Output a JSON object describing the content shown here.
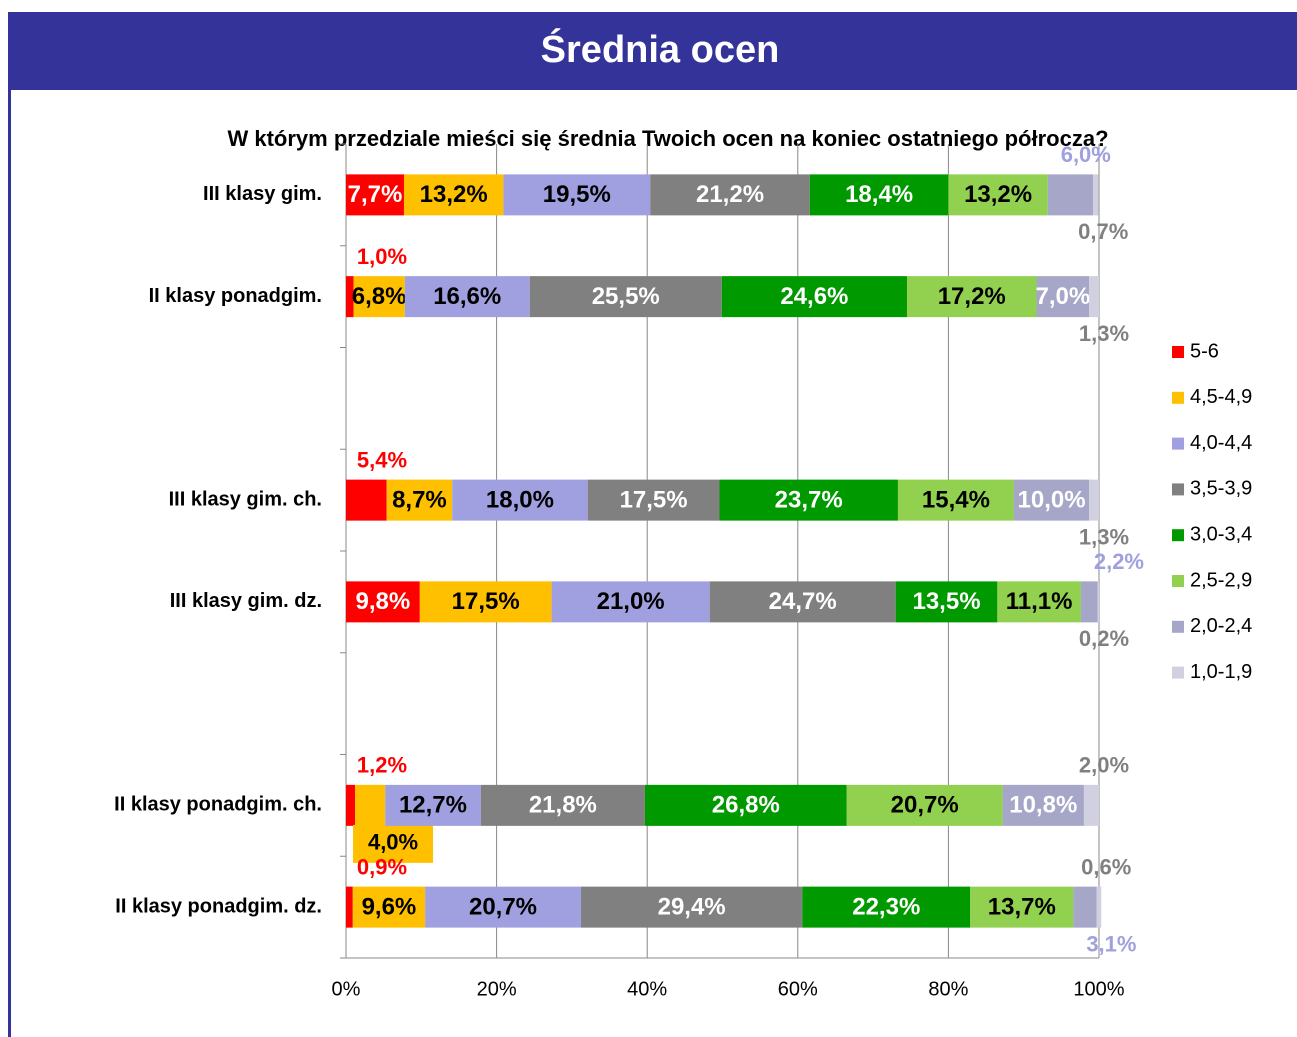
{
  "header": {
    "title": "Średnia ocen"
  },
  "chart_data": {
    "type": "stacked_bar_horizontal_100",
    "title": "W którym przedziale mieści się średnia Twoich ocen na koniec ostatniego półrocza?",
    "categories": [
      "III klasy gim.",
      "II klasy ponadgim.",
      null,
      "III klasy gim. ch.",
      "III klasy gim. dz.",
      null,
      "II klasy ponadgim. ch.",
      "II klasy ponadgim. dz."
    ],
    "xlim": [
      0,
      100
    ],
    "xticks": [
      {
        "value": 0,
        "label": "0%"
      },
      {
        "value": 20,
        "label": "20%"
      },
      {
        "value": 40,
        "label": "40%"
      },
      {
        "value": 60,
        "label": "60%"
      },
      {
        "value": 80,
        "label": "80%"
      },
      {
        "value": 100,
        "label": "100%"
      }
    ],
    "grid": true,
    "legend": "right",
    "series": [
      {
        "name": "5-6",
        "color": "#ff0000",
        "values": [
          7.7,
          1.0,
          null,
          5.4,
          9.8,
          null,
          1.2,
          0.9
        ],
        "value_labels": [
          "7,7%",
          "1,0%",
          null,
          "5,4%",
          "9,8%",
          null,
          "1,2%",
          "0,9%"
        ]
      },
      {
        "name": "4,5-4,9",
        "color": "#ffc000",
        "values": [
          13.2,
          6.8,
          null,
          8.7,
          17.5,
          null,
          4.0,
          9.6
        ],
        "value_labels": [
          "13,2%",
          "6,8%",
          null,
          "8,7%",
          "17,5%",
          null,
          "4,0%",
          "9,6%"
        ]
      },
      {
        "name": "4,0-4,4",
        "color": "#a0a0e0",
        "values": [
          19.5,
          16.6,
          null,
          18.0,
          21.0,
          null,
          12.7,
          20.7
        ],
        "value_labels": [
          "19,5%",
          "16,6%",
          null,
          "18,0%",
          "21,0%",
          null,
          "12,7%",
          "20,7%"
        ]
      },
      {
        "name": "3,5-3,9",
        "color": "#808080",
        "values": [
          21.2,
          25.5,
          null,
          17.5,
          24.7,
          null,
          21.8,
          29.4
        ],
        "value_labels": [
          "21,2%",
          "25,5%",
          null,
          "17,5%",
          "24,7%",
          null,
          "21,8%",
          "29,4%"
        ]
      },
      {
        "name": "3,0-3,4",
        "color": "#009900",
        "values": [
          18.4,
          24.6,
          null,
          23.7,
          13.5,
          null,
          26.8,
          22.3
        ],
        "value_labels": [
          "18,4%",
          "24,6%",
          null,
          "23,7%",
          "13,5%",
          null,
          "26,8%",
          "22,3%"
        ]
      },
      {
        "name": "2,5-2,9",
        "color": "#92d050",
        "values": [
          13.2,
          17.2,
          null,
          15.4,
          11.1,
          null,
          20.7,
          13.7
        ],
        "value_labels": [
          "13,2%",
          "17,2%",
          null,
          "15,4%",
          "11,1%",
          null,
          "20,7%",
          "13,7%"
        ]
      },
      {
        "name": "2,0-2,4",
        "color": "#a6a6c8",
        "values": [
          6.0,
          7.0,
          null,
          10.0,
          2.2,
          null,
          10.8,
          3.1
        ],
        "value_labels": [
          "6,0%",
          "7,0%",
          null,
          "10,0%",
          "2,2%",
          null,
          "10,8%",
          "3,1%"
        ]
      },
      {
        "name": "1,0-1,9",
        "color": "#d0d0e0",
        "values": [
          0.7,
          1.3,
          null,
          1.3,
          0.2,
          null,
          2.0,
          0.6
        ],
        "value_labels": [
          "0,7%",
          "1,3%",
          null,
          "1,3%",
          "0,2%",
          null,
          "2,0%",
          "0,6%"
        ]
      }
    ]
  }
}
